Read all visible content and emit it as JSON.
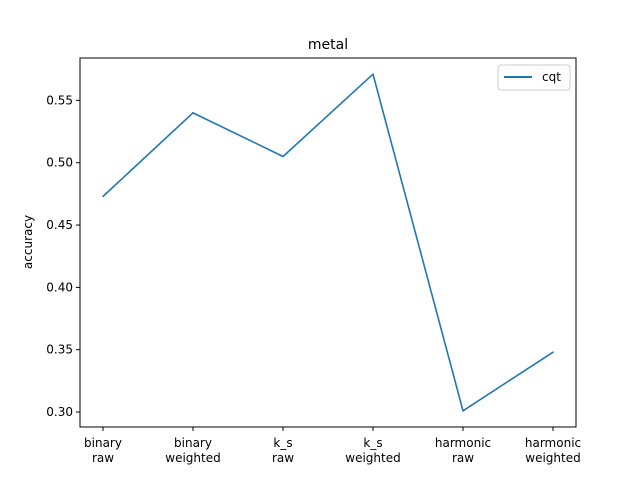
{
  "chart_data": {
    "type": "line",
    "title": "metal",
    "xlabel": "",
    "ylabel": "accuracy",
    "categories": [
      [
        "binary",
        "raw"
      ],
      [
        "binary",
        "weighted"
      ],
      [
        "k_s",
        "raw"
      ],
      [
        "k_s",
        "weighted"
      ],
      [
        "harmonic",
        "raw"
      ],
      [
        "harmonic",
        "weighted"
      ]
    ],
    "series": [
      {
        "name": "cqt",
        "values": [
          0.473,
          0.54,
          0.505,
          0.571,
          0.301,
          0.348
        ],
        "color": "#1f77b4"
      }
    ],
    "ylim": [
      0.288,
      0.584
    ],
    "yticks": [
      0.3,
      0.35,
      0.4,
      0.45,
      0.5,
      0.55
    ],
    "ytick_labels": [
      "0.30",
      "0.35",
      "0.40",
      "0.45",
      "0.50",
      "0.55"
    ],
    "grid": false,
    "legend_position": "upper-right"
  }
}
